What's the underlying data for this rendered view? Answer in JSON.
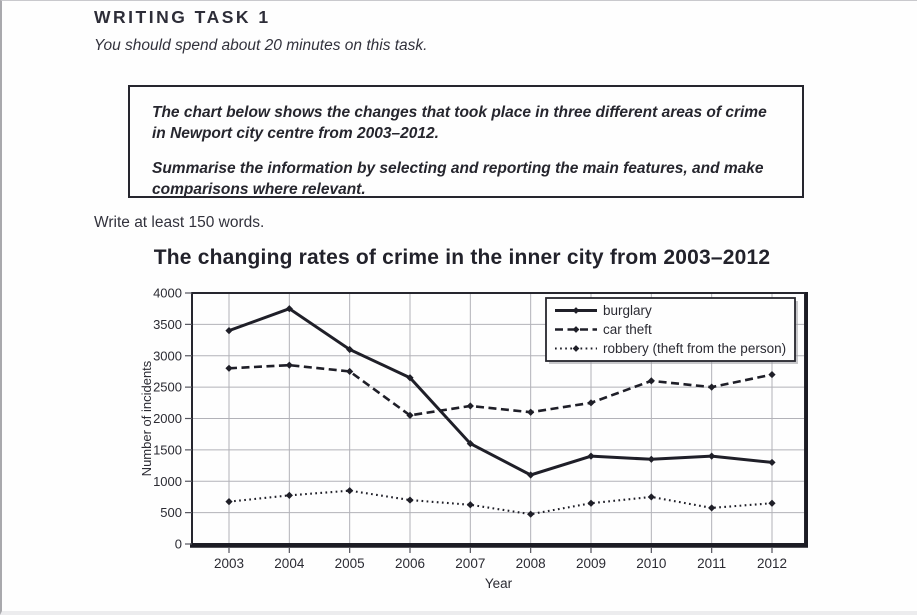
{
  "page": {
    "heading": "WRITING TASK 1",
    "instruction": "You should spend about 20 minutes on this task.",
    "task_box": {
      "paragraph1": "The chart below shows the changes that took place in three different areas of crime in Newport city centre from 2003–2012.",
      "paragraph2": "Summarise the information by selecting and reporting the main features, and make comparisons where relevant."
    },
    "write_note": "Write at least 150 words."
  },
  "chart_data": {
    "type": "line",
    "title": "The changing rates of crime in the inner city from 2003–2012",
    "xlabel": "Year",
    "ylabel": "Number of incidents",
    "x": [
      2003,
      2004,
      2005,
      2006,
      2007,
      2008,
      2009,
      2010,
      2011,
      2012
    ],
    "ylim": [
      0,
      4000
    ],
    "ytick_step": 500,
    "yticks": [
      0,
      500,
      1000,
      1500,
      2000,
      2500,
      3000,
      3500,
      4000
    ],
    "grid": true,
    "legend_position": "top-right",
    "series": [
      {
        "name": "burglary",
        "style": "solid",
        "values": [
          3400,
          3750,
          3100,
          2650,
          1600,
          1100,
          1400,
          1350,
          1400,
          1300
        ]
      },
      {
        "name": "car theft",
        "style": "dashed",
        "values": [
          2800,
          2850,
          2750,
          2050,
          2200,
          2100,
          2250,
          2600,
          2500,
          2700
        ]
      },
      {
        "name": "robbery (theft from the person)",
        "style": "dotted",
        "values": [
          675,
          775,
          850,
          700,
          625,
          475,
          650,
          750,
          575,
          650
        ]
      }
    ],
    "colors": {
      "line": "#1f1f28",
      "grid": "#b2b2b8",
      "text": "#2b2b33",
      "tick": "#55555e"
    }
  }
}
